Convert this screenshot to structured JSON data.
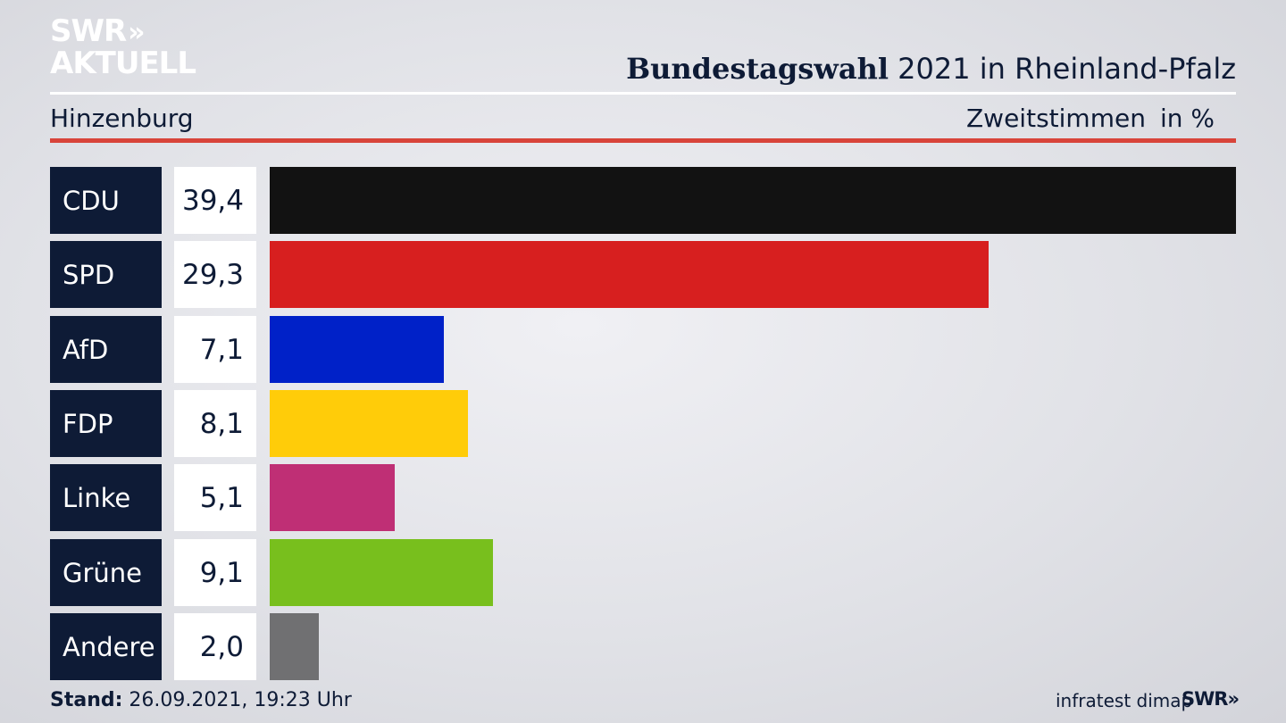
{
  "brand": {
    "logo_line1": "SWR",
    "logo_chevrons": "»",
    "logo_line2": "AKTUELL",
    "footer_logo": "SWR»"
  },
  "header": {
    "title_bold": "Bundestagswahl",
    "title_rest": "2021 in Rheinland-Pfalz",
    "region": "Hinzenburg",
    "measure": "Zweitstimmen",
    "unit": "in %"
  },
  "footer": {
    "stand_label": "Stand:",
    "stand_value": "26.09.2021, 19:23 Uhr",
    "source": "infratest dimap"
  },
  "chart_data": {
    "type": "bar",
    "orientation": "horizontal",
    "categories": [
      "CDU",
      "SPD",
      "AfD",
      "FDP",
      "Linke",
      "Grüne",
      "Andere"
    ],
    "values": [
      39.4,
      29.3,
      7.1,
      8.1,
      5.1,
      9.1,
      2.0
    ],
    "value_labels": [
      "39,4",
      "29,3",
      "7,1",
      "8,1",
      "5,1",
      "9,1",
      "2,0"
    ],
    "colors": [
      "#121212",
      "#d71f1f",
      "#0021c8",
      "#ffcc09",
      "#bf2f75",
      "#78bf1d",
      "#707072"
    ],
    "xlim": [
      0,
      39.4
    ]
  },
  "colors": {
    "navy": "#0e1b36",
    "accent_red": "#d8443a"
  }
}
